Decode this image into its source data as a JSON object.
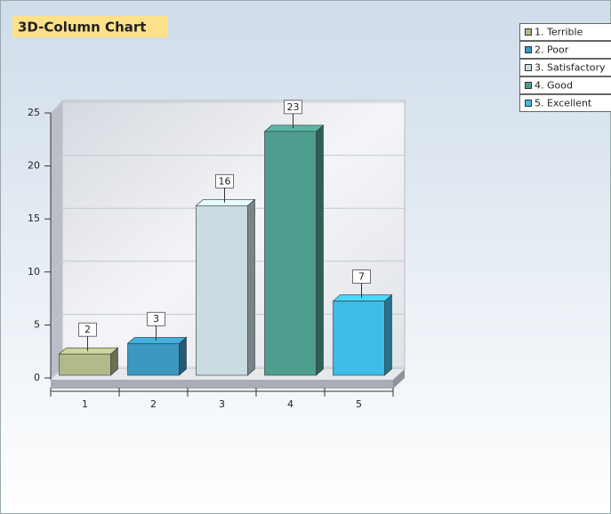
{
  "chart_data": {
    "type": "bar3d",
    "title": "3D-Column Chart",
    "categories": [
      "1",
      "2",
      "3",
      "4",
      "5"
    ],
    "values": [
      2,
      3,
      16,
      23,
      7
    ],
    "colors": [
      "#b4b98a",
      "#3b98c0",
      "#c8dce2",
      "#4d9e8f",
      "#3ebde9"
    ],
    "legend": [
      "1. Terrible",
      "2. Poor",
      "3. Satisfactory",
      "4. Good",
      "5. Excellent"
    ],
    "ylim": [
      0,
      25
    ],
    "yticks": [
      0,
      5,
      10,
      15,
      20,
      25
    ],
    "grid": true
  }
}
